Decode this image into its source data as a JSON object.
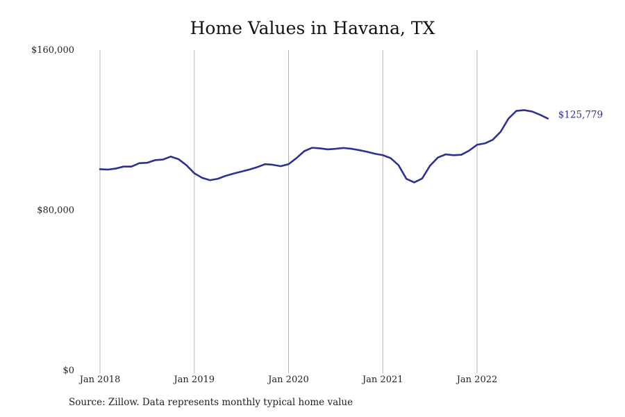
{
  "chart_data": {
    "type": "line",
    "title": "Home Values in Havana, TX",
    "xlabel": "",
    "ylabel": "",
    "ylim": [
      0,
      160000
    ],
    "y_ticks": [
      {
        "value": 0,
        "label": "$0"
      },
      {
        "value": 80000,
        "label": "$80,000"
      },
      {
        "value": 160000,
        "label": "$160,000"
      }
    ],
    "x_ticks": [
      {
        "month_index": 0,
        "label": "Jan 2018"
      },
      {
        "month_index": 12,
        "label": "Jan 2019"
      },
      {
        "month_index": 24,
        "label": "Jan 2020"
      },
      {
        "month_index": 36,
        "label": "Jan 2021"
      },
      {
        "month_index": 48,
        "label": "Jan 2022"
      }
    ],
    "grid": "vertical lines at year ticks",
    "series": [
      {
        "start": "2018-01",
        "frequency": "monthly",
        "color": "#2e3192",
        "end_label": "$125,779",
        "values": [
          100500,
          100300,
          100800,
          101800,
          101800,
          103500,
          103700,
          105000,
          105300,
          106800,
          105500,
          102500,
          98500,
          96200,
          95000,
          95700,
          97200,
          98300,
          99300,
          100300,
          101500,
          103000,
          102700,
          102000,
          103000,
          106000,
          109500,
          111200,
          110900,
          110400,
          110700,
          111100,
          110700,
          110000,
          109200,
          108200,
          107500,
          106000,
          102500,
          95700,
          93900,
          95800,
          102200,
          106300,
          107900,
          107500,
          107700,
          109800,
          112700,
          113400,
          115200,
          119200,
          125800,
          129600,
          130000,
          129300,
          127700,
          125779
        ]
      }
    ]
  },
  "source_note": "Source: Zillow. Data represents monthly typical home value"
}
